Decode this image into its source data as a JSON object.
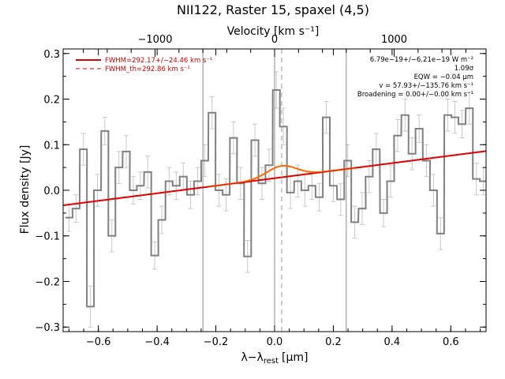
{
  "chart_data": {
    "type": "line",
    "title": "NII122, Raster 15, spaxel (4,5)",
    "xlabel": "λ−λ",
    "xlabel_sub": "rest",
    "xlabel_unit": "[μm]",
    "ylabel": "Flux density [Jy]",
    "top_axis_label": "Velocity [km s⁻¹]",
    "xlim": [
      -0.72,
      0.72
    ],
    "ylim": [
      -0.31,
      0.31
    ],
    "x_ticks": [
      {
        "v": -0.6,
        "label": "−0.6"
      },
      {
        "v": -0.4,
        "label": "−0.4"
      },
      {
        "v": -0.2,
        "label": "−0.2"
      },
      {
        "v": 0.0,
        "label": "0.0"
      },
      {
        "v": 0.2,
        "label": "0.2"
      },
      {
        "v": 0.4,
        "label": "0.4"
      },
      {
        "v": 0.6,
        "label": "0.6"
      }
    ],
    "y_ticks": [
      {
        "v": -0.3,
        "label": "−0.3"
      },
      {
        "v": -0.2,
        "label": "−0.2"
      },
      {
        "v": -0.1,
        "label": "−0.1"
      },
      {
        "v": 0.0,
        "label": "0.0"
      },
      {
        "v": 0.1,
        "label": "0.1"
      },
      {
        "v": 0.2,
        "label": "0.2"
      },
      {
        "v": 0.3,
        "label": "0.3"
      }
    ],
    "top_ticks": [
      {
        "v": -1000,
        "label": "−1000"
      },
      {
        "v": 0,
        "label": "0"
      },
      {
        "v": 1000,
        "label": "1000"
      }
    ],
    "top_scale_um_per_kms": 0.000407,
    "vertical_lines": [
      -0.244,
      0.0,
      0.244
    ],
    "dashed_vertical_line": 0.024,
    "step_bin_width": 0.02435,
    "step_x": [
      -0.7,
      -0.676,
      -0.651,
      -0.627,
      -0.603,
      -0.578,
      -0.554,
      -0.53,
      -0.505,
      -0.481,
      -0.457,
      -0.432,
      -0.408,
      -0.384,
      -0.359,
      -0.335,
      -0.311,
      -0.286,
      -0.262,
      -0.238,
      -0.213,
      -0.189,
      -0.165,
      -0.14,
      -0.116,
      -0.092,
      -0.067,
      -0.043,
      -0.019,
      0.006,
      0.03,
      0.054,
      0.079,
      0.103,
      0.127,
      0.152,
      0.176,
      0.2,
      0.225,
      0.249,
      0.273,
      0.298,
      0.322,
      0.346,
      0.371,
      0.395,
      0.419,
      0.444,
      0.468,
      0.492,
      0.517,
      0.541,
      0.565,
      0.59,
      0.614,
      0.638,
      0.663,
      0.687,
      0.711
    ],
    "step_y": [
      -0.06,
      -0.04,
      0.09,
      -0.255,
      0.0,
      0.13,
      -0.1,
      0.05,
      0.085,
      0.0,
      0.01,
      0.04,
      -0.143,
      -0.065,
      0.02,
      0.01,
      0.03,
      -0.01,
      0.02,
      0.065,
      0.17,
      0.0,
      -0.01,
      0.115,
      0.015,
      -0.145,
      0.11,
      0.015,
      0.055,
      0.22,
      0.14,
      -0.005,
      0.02,
      0.0,
      0.01,
      -0.015,
      0.16,
      0.01,
      -0.02,
      0.065,
      -0.07,
      -0.04,
      0.03,
      0.09,
      -0.05,
      0.02,
      0.12,
      0.165,
      0.08,
      0.135,
      0.065,
      0.0,
      -0.095,
      0.165,
      0.16,
      0.145,
      0.18,
      0.025,
      0.02
    ],
    "step_err": [
      0.03,
      0.03,
      0.035,
      0.045,
      0.035,
      0.03,
      0.035,
      0.035,
      0.035,
      0.03,
      0.03,
      0.035,
      0.03,
      0.03,
      0.03,
      0.03,
      0.03,
      0.03,
      0.03,
      0.035,
      0.035,
      0.035,
      0.035,
      0.035,
      0.035,
      0.035,
      0.035,
      0.035,
      0.035,
      0.04,
      0.04,
      0.035,
      0.035,
      0.035,
      0.03,
      0.03,
      0.035,
      0.035,
      0.035,
      0.035,
      0.035,
      0.035,
      0.035,
      0.035,
      0.03,
      0.035,
      0.035,
      0.035,
      0.035,
      0.03,
      0.035,
      0.035,
      0.035,
      0.035,
      0.035,
      0.03,
      0.035,
      0.035,
      0.03
    ],
    "series": [
      {
        "name": "FWHM=292.17+/−24.46 km s⁻¹",
        "color": "#e00000",
        "style": "solid",
        "continuum_at_xlim": [
          -0.033,
          0.086
        ],
        "gauss_center": 0.024,
        "gauss_amp": 0.025,
        "gauss_fwhm": 0.119
      },
      {
        "name": "FWHM_th=292.86 km s⁻¹",
        "color": "#e00000",
        "style": "dashed"
      }
    ],
    "annotations": [
      "6.79e−19+/−6.21e−19 W m⁻²",
      "1.09σ",
      "EQW = −0.04 μm",
      "v = 57.93+/−135.76 km s⁻¹",
      "Broadening = 0.00+/−0.00 km s⁻¹"
    ],
    "colors": {
      "data_step": "#808080",
      "error_bars": "#c8c8c8",
      "fit": "#e00000",
      "gaussian": "#ff6a00",
      "axes": "#000000"
    },
    "grid": false,
    "legend_position": "top-left"
  }
}
